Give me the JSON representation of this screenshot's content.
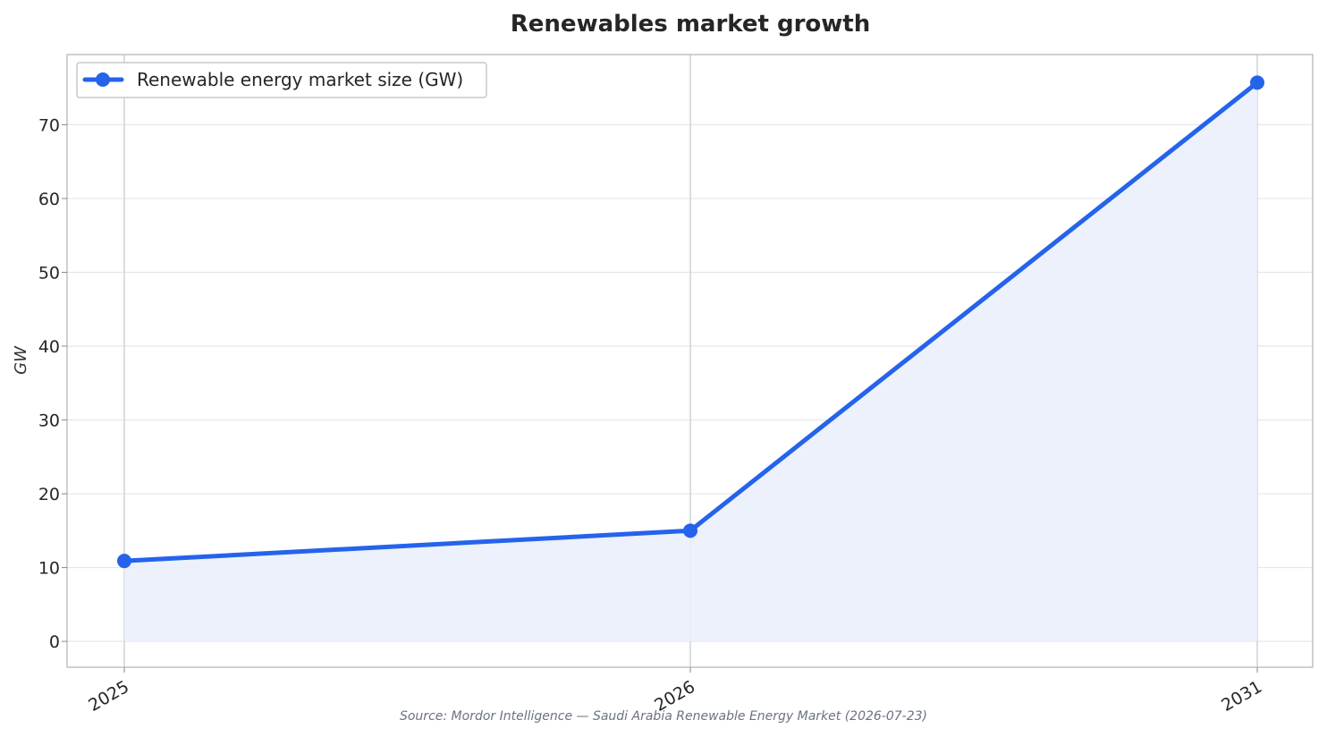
{
  "chart_data": {
    "type": "line",
    "title": "Renewables market growth",
    "xlabel": "",
    "ylabel": "GW",
    "categories": [
      "2025",
      "2026",
      "2031"
    ],
    "series": [
      {
        "name": "Renewable energy market size (GW)",
        "values": [
          10.9,
          15.0,
          75.7
        ]
      }
    ],
    "ylim": [
      -3.5,
      79.5
    ],
    "yticks": [
      0,
      10,
      20,
      30,
      40,
      50,
      60,
      70
    ],
    "area_fill": true,
    "grid": true,
    "legend_position": "top-left",
    "colors": {
      "line": "#2563eb",
      "fill": "#eaf0fb",
      "grid": "#e5e7eb",
      "vline": "#c7cbd3",
      "axis": "#c0c0c0"
    },
    "source": "Source: Mordor Intelligence — Saudi Arabia Renewable Energy Market (2026-07-23)"
  }
}
